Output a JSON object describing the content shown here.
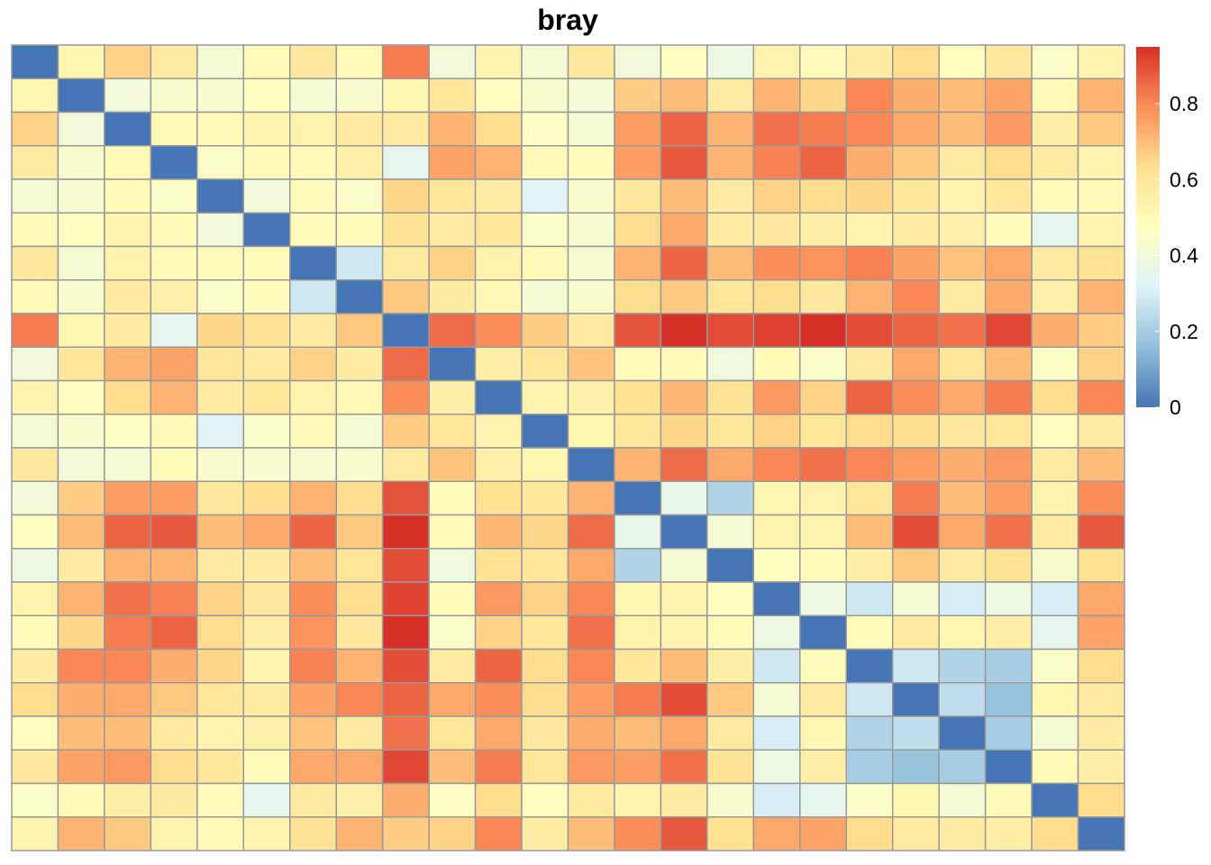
{
  "chart_data": {
    "type": "heatmap",
    "title": "bray",
    "n": 24,
    "values": [
      [
        0.0,
        0.52,
        0.66,
        0.58,
        0.42,
        0.5,
        0.59,
        0.5,
        0.82,
        0.4,
        0.53,
        0.42,
        0.59,
        0.4,
        0.47,
        0.38,
        0.54,
        0.49,
        0.57,
        0.64,
        0.48,
        0.59,
        0.45,
        0.53
      ],
      [
        0.52,
        0.0,
        0.4,
        0.44,
        0.43,
        0.47,
        0.42,
        0.44,
        0.52,
        0.6,
        0.48,
        0.44,
        0.41,
        0.67,
        0.7,
        0.58,
        0.72,
        0.65,
        0.8,
        0.73,
        0.7,
        0.75,
        0.5,
        0.72
      ],
      [
        0.66,
        0.4,
        0.0,
        0.5,
        0.5,
        0.53,
        0.54,
        0.58,
        0.58,
        0.72,
        0.64,
        0.46,
        0.42,
        0.76,
        0.86,
        0.72,
        0.84,
        0.82,
        0.8,
        0.74,
        0.7,
        0.77,
        0.56,
        0.68
      ],
      [
        0.58,
        0.44,
        0.5,
        0.0,
        0.45,
        0.5,
        0.5,
        0.55,
        0.35,
        0.75,
        0.72,
        0.5,
        0.49,
        0.76,
        0.88,
        0.72,
        0.81,
        0.86,
        0.73,
        0.68,
        0.58,
        0.64,
        0.58,
        0.53
      ],
      [
        0.42,
        0.43,
        0.5,
        0.45,
        0.0,
        0.4,
        0.49,
        0.45,
        0.65,
        0.6,
        0.57,
        0.32,
        0.44,
        0.59,
        0.7,
        0.58,
        0.66,
        0.64,
        0.65,
        0.6,
        0.53,
        0.6,
        0.49,
        0.5
      ],
      [
        0.5,
        0.47,
        0.53,
        0.5,
        0.4,
        0.0,
        0.49,
        0.49,
        0.62,
        0.58,
        0.6,
        0.45,
        0.43,
        0.64,
        0.74,
        0.57,
        0.59,
        0.56,
        0.53,
        0.57,
        0.55,
        0.49,
        0.35,
        0.53
      ],
      [
        0.59,
        0.42,
        0.54,
        0.5,
        0.49,
        0.49,
        0.0,
        0.28,
        0.58,
        0.66,
        0.54,
        0.5,
        0.43,
        0.72,
        0.86,
        0.7,
        0.79,
        0.78,
        0.81,
        0.75,
        0.69,
        0.74,
        0.58,
        0.62
      ],
      [
        0.5,
        0.44,
        0.58,
        0.55,
        0.45,
        0.49,
        0.28,
        0.0,
        0.68,
        0.57,
        0.51,
        0.42,
        0.44,
        0.64,
        0.68,
        0.61,
        0.64,
        0.59,
        0.72,
        0.8,
        0.58,
        0.74,
        0.55,
        0.72
      ],
      [
        0.82,
        0.52,
        0.58,
        0.35,
        0.65,
        0.62,
        0.58,
        0.68,
        0.0,
        0.85,
        0.79,
        0.67,
        0.58,
        0.89,
        0.95,
        0.9,
        0.92,
        0.95,
        0.9,
        0.86,
        0.84,
        0.91,
        0.73,
        0.67
      ],
      [
        0.4,
        0.6,
        0.72,
        0.75,
        0.6,
        0.58,
        0.66,
        0.57,
        0.85,
        0.0,
        0.56,
        0.6,
        0.69,
        0.49,
        0.5,
        0.39,
        0.5,
        0.45,
        0.58,
        0.74,
        0.61,
        0.7,
        0.46,
        0.66
      ],
      [
        0.53,
        0.48,
        0.64,
        0.72,
        0.57,
        0.6,
        0.54,
        0.51,
        0.79,
        0.56,
        0.0,
        0.53,
        0.55,
        0.63,
        0.71,
        0.62,
        0.77,
        0.66,
        0.86,
        0.79,
        0.74,
        0.82,
        0.64,
        0.8
      ],
      [
        0.42,
        0.44,
        0.46,
        0.5,
        0.32,
        0.45,
        0.5,
        0.42,
        0.67,
        0.6,
        0.53,
        0.0,
        0.52,
        0.6,
        0.65,
        0.6,
        0.66,
        0.6,
        0.64,
        0.64,
        0.59,
        0.6,
        0.48,
        0.57
      ],
      [
        0.59,
        0.41,
        0.42,
        0.49,
        0.44,
        0.43,
        0.43,
        0.44,
        0.58,
        0.69,
        0.55,
        0.52,
        0.0,
        0.72,
        0.85,
        0.74,
        0.8,
        0.84,
        0.8,
        0.76,
        0.73,
        0.77,
        0.58,
        0.7
      ],
      [
        0.4,
        0.67,
        0.76,
        0.76,
        0.59,
        0.64,
        0.72,
        0.64,
        0.89,
        0.49,
        0.63,
        0.6,
        0.72,
        0.0,
        0.36,
        0.22,
        0.52,
        0.54,
        0.6,
        0.82,
        0.7,
        0.76,
        0.53,
        0.79
      ],
      [
        0.47,
        0.7,
        0.86,
        0.88,
        0.7,
        0.74,
        0.86,
        0.68,
        0.95,
        0.5,
        0.71,
        0.65,
        0.85,
        0.36,
        0.0,
        0.42,
        0.54,
        0.53,
        0.7,
        0.9,
        0.74,
        0.84,
        0.58,
        0.88
      ],
      [
        0.38,
        0.58,
        0.72,
        0.72,
        0.58,
        0.57,
        0.7,
        0.61,
        0.9,
        0.39,
        0.62,
        0.6,
        0.74,
        0.22,
        0.42,
        0.0,
        0.47,
        0.49,
        0.56,
        0.68,
        0.58,
        0.62,
        0.44,
        0.63
      ],
      [
        0.54,
        0.72,
        0.84,
        0.81,
        0.66,
        0.59,
        0.79,
        0.64,
        0.92,
        0.5,
        0.77,
        0.66,
        0.8,
        0.52,
        0.54,
        0.47,
        0.0,
        0.38,
        0.28,
        0.42,
        0.3,
        0.38,
        0.3,
        0.74
      ],
      [
        0.49,
        0.65,
        0.82,
        0.86,
        0.64,
        0.56,
        0.78,
        0.59,
        0.95,
        0.45,
        0.66,
        0.6,
        0.84,
        0.54,
        0.53,
        0.49,
        0.38,
        0.0,
        0.49,
        0.58,
        0.52,
        0.56,
        0.35,
        0.75
      ],
      [
        0.57,
        0.8,
        0.8,
        0.73,
        0.65,
        0.53,
        0.81,
        0.72,
        0.9,
        0.58,
        0.86,
        0.64,
        0.8,
        0.6,
        0.7,
        0.56,
        0.28,
        0.49,
        0.0,
        0.28,
        0.22,
        0.2,
        0.45,
        0.64
      ],
      [
        0.64,
        0.73,
        0.74,
        0.68,
        0.6,
        0.57,
        0.75,
        0.8,
        0.86,
        0.74,
        0.79,
        0.64,
        0.76,
        0.82,
        0.9,
        0.68,
        0.42,
        0.58,
        0.28,
        0.0,
        0.25,
        0.17,
        0.52,
        0.58
      ],
      [
        0.48,
        0.7,
        0.7,
        0.58,
        0.53,
        0.55,
        0.69,
        0.58,
        0.84,
        0.61,
        0.74,
        0.59,
        0.73,
        0.7,
        0.74,
        0.58,
        0.3,
        0.52,
        0.22,
        0.25,
        0.0,
        0.2,
        0.42,
        0.57
      ],
      [
        0.59,
        0.75,
        0.77,
        0.64,
        0.6,
        0.49,
        0.74,
        0.74,
        0.91,
        0.7,
        0.82,
        0.6,
        0.77,
        0.76,
        0.84,
        0.62,
        0.38,
        0.56,
        0.2,
        0.17,
        0.2,
        0.0,
        0.5,
        0.56
      ],
      [
        0.45,
        0.5,
        0.56,
        0.58,
        0.49,
        0.35,
        0.58,
        0.55,
        0.73,
        0.46,
        0.64,
        0.48,
        0.58,
        0.53,
        0.58,
        0.44,
        0.3,
        0.35,
        0.45,
        0.52,
        0.42,
        0.5,
        0.0,
        0.64
      ],
      [
        0.53,
        0.72,
        0.68,
        0.53,
        0.5,
        0.53,
        0.62,
        0.72,
        0.67,
        0.66,
        0.8,
        0.57,
        0.7,
        0.79,
        0.88,
        0.63,
        0.74,
        0.75,
        0.64,
        0.58,
        0.57,
        0.56,
        0.64,
        0.0
      ]
    ],
    "color_min": 0,
    "color_max": 0.95,
    "colors": [
      "#4575B4",
      "#91BFDB",
      "#E0F3F8",
      "#FFFFBF",
      "#FEE090",
      "#FC8D59",
      "#D73027"
    ],
    "legend": {
      "position": "right",
      "ticks": [
        "0",
        "0.2",
        "0.4",
        "0.6",
        "0.8"
      ],
      "tick_values": [
        0,
        0.2,
        0.4,
        0.6,
        0.8
      ]
    },
    "grid_color": "#999999"
  }
}
